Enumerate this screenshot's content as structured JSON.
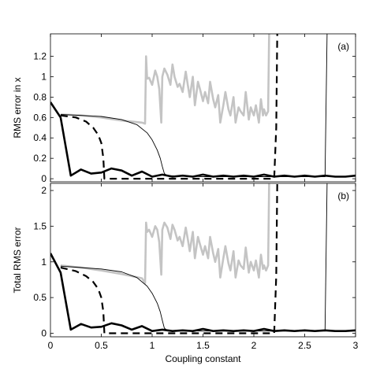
{
  "chart_data": [
    {
      "type": "line",
      "panel_label": "(a)",
      "ylabel": "RMS error in x",
      "xlabel": "",
      "xlim": [
        0,
        3
      ],
      "ylim": [
        -0.03,
        1.42
      ],
      "yticks": [
        0,
        0.2,
        0.4,
        0.6,
        0.8,
        1,
        1.2
      ],
      "ytick_labels": [
        "0",
        "0.2",
        "0.4",
        "0.6",
        "0.8",
        "1",
        "1.2"
      ],
      "xticks": [
        0,
        0.5,
        1,
        1.5,
        2,
        2.5,
        3
      ],
      "xtick_labels": [],
      "grid": false,
      "series": [
        {
          "style": "thick-black",
          "color": "#000000",
          "x": [
            0,
            0.1,
            0.2,
            0.3,
            0.4,
            0.5,
            0.6,
            0.7,
            0.8,
            0.9,
            1.0,
            1.1,
            1.2,
            1.3,
            1.4,
            1.5,
            1.6,
            1.7,
            1.8,
            1.9,
            2.0,
            2.1,
            2.2,
            2.3,
            2.4,
            2.5,
            2.6,
            2.7,
            2.8,
            2.9,
            3.0
          ],
          "y": [
            0.75,
            0.6,
            0.03,
            0.09,
            0.05,
            0.06,
            0.1,
            0.08,
            0.03,
            0.07,
            0.02,
            0.04,
            0.02,
            0.03,
            0.02,
            0.04,
            0.02,
            0.03,
            0.02,
            0.03,
            0.02,
            0.04,
            0.02,
            0.03,
            0.02,
            0.03,
            0.02,
            0.03,
            0.02,
            0.02,
            0.03
          ]
        },
        {
          "style": "dashed-black",
          "color": "#000000",
          "x": [
            0.1,
            0.25,
            0.35,
            0.42,
            0.47,
            0.5,
            0.52,
            0.53,
            0.6,
            1.0,
            1.5,
            2.0,
            2.2,
            2.22,
            2.23
          ],
          "y": [
            0.62,
            0.6,
            0.56,
            0.5,
            0.43,
            0.35,
            0.2,
            0.0,
            0.0,
            0.0,
            0.0,
            0.0,
            0.0,
            0.5,
            1.42
          ]
        },
        {
          "style": "thin-black",
          "color": "#000000",
          "x": [
            0.1,
            0.3,
            0.5,
            0.7,
            0.85,
            0.95,
            1.0,
            1.05,
            1.08,
            1.1,
            1.12,
            1.15,
            1.5,
            2.0,
            2.5,
            2.7,
            2.72
          ],
          "y": [
            0.63,
            0.62,
            0.61,
            0.58,
            0.53,
            0.45,
            0.38,
            0.28,
            0.2,
            0.12,
            0.05,
            0.03,
            0.02,
            0.02,
            0.02,
            0.02,
            1.42
          ]
        },
        {
          "style": "thick-gray",
          "color": "#c4c4c4",
          "x": [
            0.1,
            0.3,
            0.5,
            0.7,
            0.9,
            0.93,
            0.94,
            0.95,
            0.97,
            1.0,
            1.03,
            1.05,
            1.07,
            1.09,
            1.1,
            1.12,
            1.15,
            1.18,
            1.2,
            1.22,
            1.25,
            1.27,
            1.3,
            1.33,
            1.35,
            1.37,
            1.4,
            1.42,
            1.45,
            1.47,
            1.5,
            1.52,
            1.55,
            1.57,
            1.6,
            1.62,
            1.65,
            1.67,
            1.7,
            1.72,
            1.75,
            1.77,
            1.8,
            1.82,
            1.85,
            1.87,
            1.9,
            1.92,
            1.95,
            1.97,
            2.0,
            2.02,
            2.05,
            2.07,
            2.09,
            2.1,
            2.12,
            2.14,
            2.15
          ],
          "y": [
            0.63,
            0.62,
            0.6,
            0.57,
            0.55,
            0.54,
            1.2,
            0.98,
            0.99,
            0.92,
            1.06,
            1.0,
            0.88,
            0.55,
            1.0,
            1.08,
            1.02,
            0.92,
            1.12,
            1.0,
            0.9,
            0.93,
            0.85,
            1.05,
            0.92,
            0.8,
            1.0,
            0.72,
            0.95,
            0.88,
            0.76,
            0.85,
            0.74,
            0.95,
            0.78,
            0.7,
            0.82,
            0.55,
            0.72,
            0.85,
            0.68,
            0.62,
            0.8,
            0.55,
            0.7,
            0.66,
            0.62,
            0.85,
            0.58,
            0.7,
            0.62,
            0.72,
            0.55,
            0.78,
            0.62,
            0.68,
            0.62,
            0.66,
            1.42
          ]
        }
      ]
    },
    {
      "type": "line",
      "panel_label": "(b)",
      "ylabel": "Total RMS error",
      "xlabel": "Coupling constant",
      "xlim": [
        0,
        3
      ],
      "ylim": [
        -0.05,
        2.1
      ],
      "yticks": [
        0,
        0.5,
        1,
        1.5,
        2
      ],
      "ytick_labels": [
        "0",
        "0.5",
        "1",
        "1.5",
        "2"
      ],
      "xticks": [
        0,
        0.5,
        1,
        1.5,
        2,
        2.5,
        3
      ],
      "xtick_labels": [
        "0",
        "0.5",
        "1",
        "1.5",
        "2",
        "2.5",
        "3"
      ],
      "grid": false,
      "series": [
        {
          "style": "thick-black",
          "color": "#000000",
          "x": [
            0,
            0.1,
            0.2,
            0.3,
            0.4,
            0.5,
            0.6,
            0.7,
            0.8,
            0.9,
            1.0,
            1.1,
            1.2,
            1.3,
            1.4,
            1.5,
            1.6,
            1.7,
            1.8,
            1.9,
            2.0,
            2.1,
            2.2,
            2.3,
            2.4,
            2.5,
            2.6,
            2.7,
            2.8,
            2.9,
            3.0
          ],
          "y": [
            1.12,
            0.85,
            0.05,
            0.13,
            0.08,
            0.09,
            0.14,
            0.11,
            0.05,
            0.1,
            0.03,
            0.05,
            0.03,
            0.04,
            0.03,
            0.06,
            0.03,
            0.04,
            0.03,
            0.04,
            0.03,
            0.06,
            0.03,
            0.04,
            0.03,
            0.04,
            0.03,
            0.04,
            0.03,
            0.03,
            0.04
          ]
        },
        {
          "style": "dashed-black",
          "color": "#000000",
          "x": [
            0.1,
            0.25,
            0.35,
            0.42,
            0.47,
            0.5,
            0.52,
            0.53,
            0.6,
            1.0,
            1.5,
            2.0,
            2.2,
            2.22,
            2.23
          ],
          "y": [
            0.92,
            0.87,
            0.8,
            0.72,
            0.62,
            0.5,
            0.3,
            0.0,
            0.0,
            0.0,
            0.0,
            0.0,
            0.0,
            0.8,
            2.1
          ]
        },
        {
          "style": "thin-black",
          "color": "#000000",
          "x": [
            0.1,
            0.3,
            0.5,
            0.7,
            0.85,
            0.95,
            1.0,
            1.05,
            1.08,
            1.1,
            1.12,
            1.15,
            1.5,
            2.0,
            2.5,
            2.7,
            2.72
          ],
          "y": [
            0.94,
            0.92,
            0.9,
            0.86,
            0.78,
            0.66,
            0.56,
            0.42,
            0.3,
            0.18,
            0.07,
            0.04,
            0.03,
            0.03,
            0.03,
            0.03,
            2.1
          ]
        },
        {
          "style": "thick-gray",
          "color": "#c4c4c4",
          "x": [
            0.1,
            0.3,
            0.5,
            0.7,
            0.9,
            0.93,
            0.94,
            0.95,
            0.97,
            1.0,
            1.03,
            1.05,
            1.07,
            1.09,
            1.1,
            1.12,
            1.15,
            1.18,
            1.2,
            1.22,
            1.25,
            1.27,
            1.3,
            1.33,
            1.35,
            1.37,
            1.4,
            1.42,
            1.45,
            1.47,
            1.5,
            1.52,
            1.55,
            1.57,
            1.6,
            1.62,
            1.65,
            1.67,
            1.7,
            1.72,
            1.75,
            1.77,
            1.8,
            1.82,
            1.85,
            1.87,
            1.9,
            1.92,
            1.95,
            1.97,
            2.0,
            2.02,
            2.05,
            2.07,
            2.09,
            2.1,
            2.12,
            2.14,
            2.15
          ],
          "y": [
            0.95,
            0.92,
            0.88,
            0.83,
            0.77,
            0.7,
            1.55,
            1.42,
            1.45,
            1.35,
            1.5,
            1.45,
            1.28,
            0.82,
            1.45,
            1.55,
            1.48,
            1.32,
            1.52,
            1.45,
            1.3,
            1.35,
            1.22,
            1.48,
            1.32,
            1.15,
            1.42,
            1.05,
            1.35,
            1.25,
            1.1,
            1.22,
            1.05,
            1.35,
            1.12,
            1.0,
            1.18,
            0.78,
            1.05,
            1.22,
            0.98,
            0.88,
            1.15,
            0.78,
            1.02,
            0.95,
            0.9,
            1.2,
            0.85,
            1.0,
            0.88,
            1.02,
            0.78,
            1.1,
            0.9,
            0.95,
            0.88,
            0.95,
            2.1
          ]
        }
      ]
    }
  ]
}
